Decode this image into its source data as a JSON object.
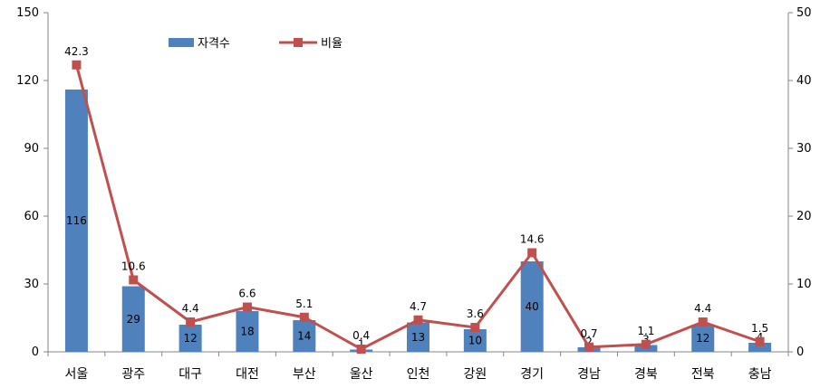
{
  "chart_data": {
    "type": "bar",
    "categories": [
      "서울",
      "광주",
      "대구",
      "대전",
      "부산",
      "울산",
      "인천",
      "강원",
      "경기",
      "경남",
      "경북",
      "전북",
      "충남"
    ],
    "series": [
      {
        "name": "자격수",
        "type": "bar",
        "axis": "left",
        "color": "#4f81bd",
        "values": [
          116,
          29,
          12,
          18,
          14,
          1,
          13,
          10,
          40,
          2,
          3,
          12,
          4
        ]
      },
      {
        "name": "비율",
        "type": "line",
        "axis": "right",
        "color": "#c0504d",
        "values": [
          42.3,
          10.6,
          4.4,
          6.6,
          5.1,
          0.4,
          4.7,
          3.6,
          14.6,
          0.7,
          1.1,
          4.4,
          1.5
        ]
      }
    ],
    "ylim_left": [
      0,
      150
    ],
    "yticks_left": [
      0,
      30,
      60,
      90,
      120,
      150
    ],
    "ylim_right": [
      0,
      50
    ],
    "yticks_right": [
      0,
      10,
      20,
      30,
      40,
      50
    ],
    "legend": "top-left",
    "grid": false
  }
}
